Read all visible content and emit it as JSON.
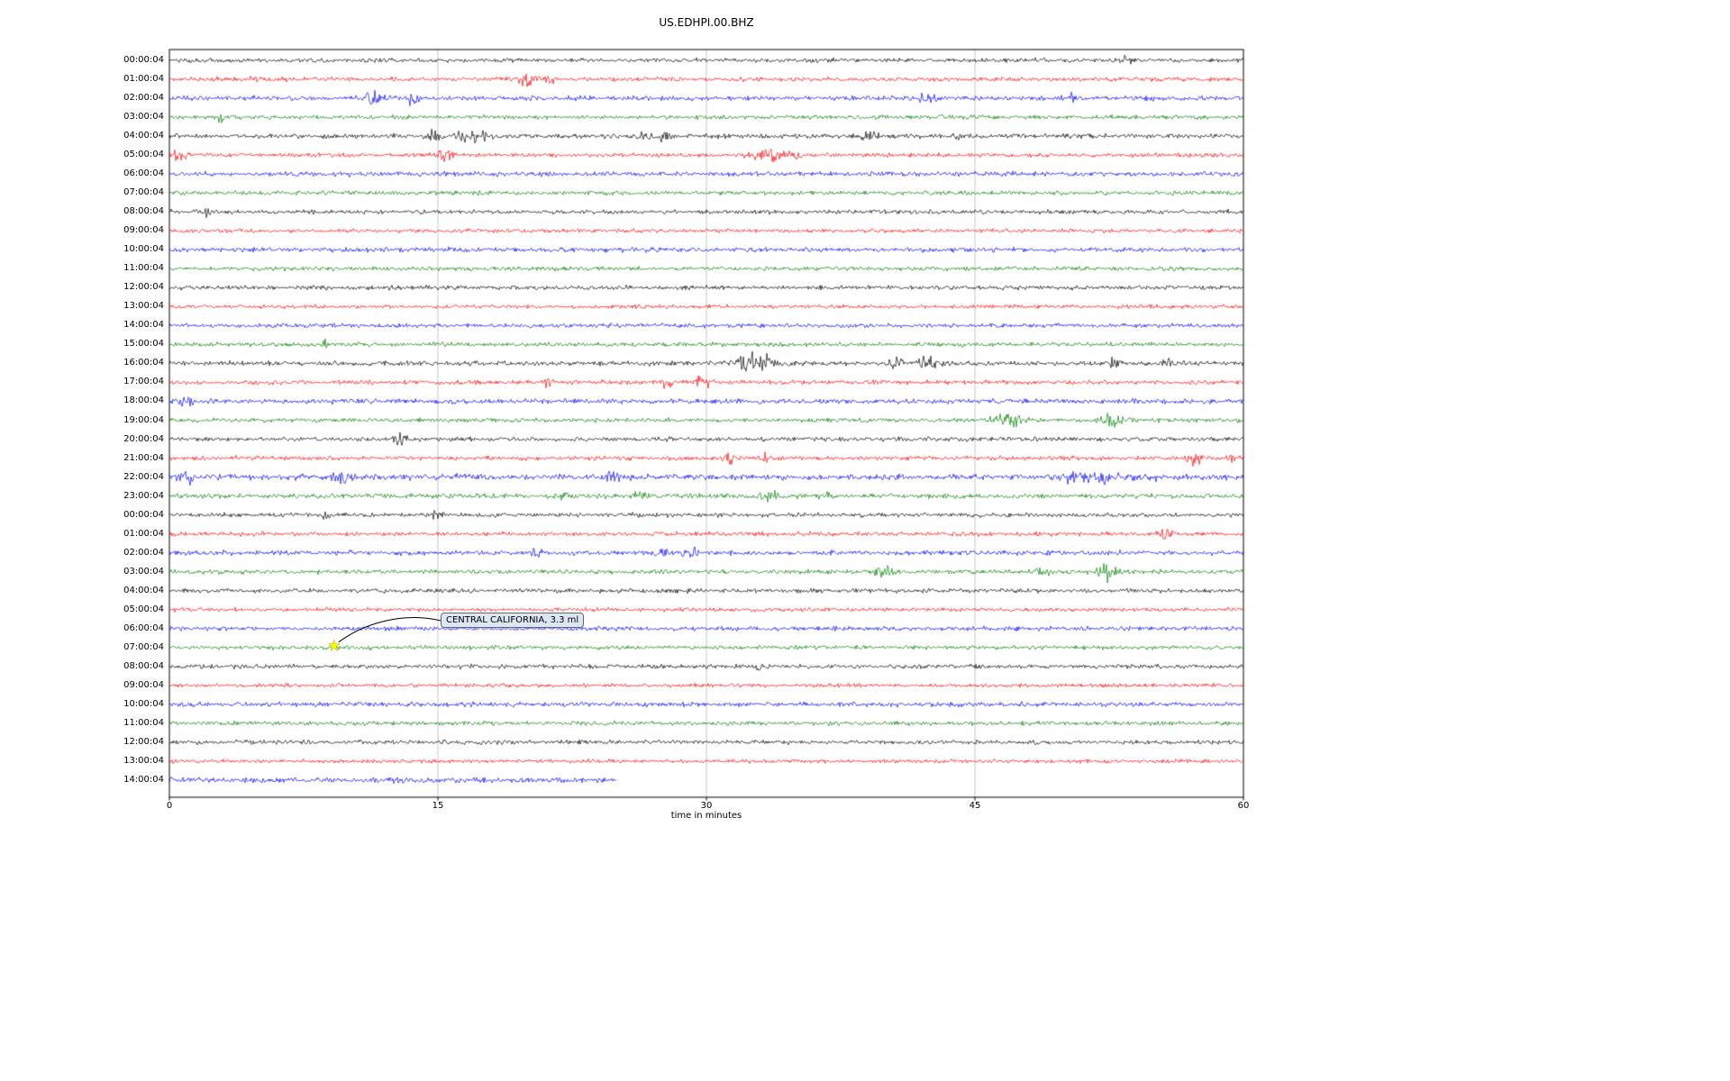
{
  "title": "US.EDHPI.00.BHZ",
  "chart_data": {
    "type": "line",
    "subtype": "helicorder-dayplot",
    "title": "US.EDHPI.00.BHZ",
    "xlabel": "time in minutes",
    "xlim": [
      0,
      60
    ],
    "x_ticks": [
      0,
      15,
      30,
      45,
      60
    ],
    "x_grid": [
      15,
      30,
      45
    ],
    "grid_on": true,
    "grid_color": "#b5b5b5",
    "trace_color_cycle": [
      "#000000",
      "#ff0000",
      "#0000ff",
      "#008000"
    ],
    "rows": [
      {
        "label": "00:00:04",
        "color": "#000000",
        "amp": 1.0,
        "events": [
          [
            53.5,
            1.8,
            0.25
          ]
        ]
      },
      {
        "label": "01:00:04",
        "color": "#ff0000",
        "amp": 1.0,
        "events": [
          [
            4.6,
            1.6,
            0.4
          ],
          [
            20.0,
            4.0,
            0.45
          ],
          [
            21.2,
            1.8,
            0.3
          ]
        ]
      },
      {
        "label": "02:00:04",
        "color": "#0000ff",
        "amp": 1.1,
        "events": [
          [
            11.3,
            2.8,
            0.5
          ],
          [
            13.6,
            2.2,
            0.4
          ],
          [
            42.5,
            2.2,
            0.7
          ],
          [
            50.5,
            1.5,
            0.3
          ]
        ]
      },
      {
        "label": "03:00:04",
        "color": "#008000",
        "amp": 1.0,
        "events": [
          [
            2.9,
            4.5,
            0.12
          ],
          [
            43.2,
            1.8,
            0.35
          ]
        ]
      },
      {
        "label": "04:00:04",
        "color": "#000000",
        "amp": 1.1,
        "events": [
          [
            14.8,
            2.6,
            0.3
          ],
          [
            16.6,
            3.2,
            0.8
          ],
          [
            17.8,
            2.6,
            0.4
          ],
          [
            26.6,
            3.2,
            0.4
          ],
          [
            27.7,
            2.4,
            0.3
          ],
          [
            39.2,
            1.8,
            0.5
          ],
          [
            44.0,
            1.4,
            0.3
          ]
        ]
      },
      {
        "label": "05:00:04",
        "color": "#ff0000",
        "amp": 1.0,
        "events": [
          [
            0.6,
            2.6,
            0.4
          ],
          [
            15.4,
            2.6,
            0.4
          ],
          [
            33.3,
            3.6,
            0.8
          ],
          [
            34.9,
            2.2,
            0.3
          ]
        ]
      },
      {
        "label": "06:00:04",
        "color": "#0000ff",
        "amp": 1.1,
        "events": []
      },
      {
        "label": "07:00:04",
        "color": "#008000",
        "amp": 1.0,
        "events": []
      },
      {
        "label": "08:00:04",
        "color": "#000000",
        "amp": 1.0,
        "events": [
          [
            2.1,
            1.2,
            0.3
          ]
        ]
      },
      {
        "label": "09:00:04",
        "color": "#ff0000",
        "amp": 0.9,
        "events": []
      },
      {
        "label": "10:00:04",
        "color": "#0000ff",
        "amp": 1.1,
        "events": []
      },
      {
        "label": "11:00:04",
        "color": "#008000",
        "amp": 1.0,
        "events": []
      },
      {
        "label": "12:00:04",
        "color": "#000000",
        "amp": 1.0,
        "events": []
      },
      {
        "label": "13:00:04",
        "color": "#ff0000",
        "amp": 0.9,
        "events": []
      },
      {
        "label": "14:00:04",
        "color": "#0000ff",
        "amp": 1.0,
        "events": []
      },
      {
        "label": "15:00:04",
        "color": "#008000",
        "amp": 1.0,
        "events": [
          [
            8.7,
            2.4,
            0.15
          ]
        ]
      },
      {
        "label": "16:00:04",
        "color": "#000000",
        "amp": 1.1,
        "events": [
          [
            32.3,
            4.5,
            0.6
          ],
          [
            33.4,
            3.5,
            0.4
          ],
          [
            40.6,
            3.2,
            0.4
          ],
          [
            42.3,
            3.2,
            0.6
          ],
          [
            52.7,
            2.2,
            0.3
          ],
          [
            55.6,
            1.8,
            0.3
          ]
        ]
      },
      {
        "label": "17:00:04",
        "color": "#ff0000",
        "amp": 1.0,
        "events": [
          [
            21.1,
            2.2,
            0.3
          ],
          [
            27.7,
            2.6,
            0.3
          ],
          [
            29.8,
            3.0,
            0.5
          ]
        ]
      },
      {
        "label": "18:00:04",
        "color": "#0000ff",
        "amp": 1.2,
        "events": [
          [
            1.0,
            1.4,
            0.5
          ]
        ]
      },
      {
        "label": "19:00:04",
        "color": "#008000",
        "amp": 1.0,
        "events": [
          [
            46.8,
            2.6,
            0.8
          ],
          [
            52.7,
            3.0,
            0.6
          ]
        ]
      },
      {
        "label": "20:00:04",
        "color": "#000000",
        "amp": 1.0,
        "events": [
          [
            12.9,
            3.2,
            0.35
          ]
        ]
      },
      {
        "label": "21:00:04",
        "color": "#ff0000",
        "amp": 1.0,
        "events": [
          [
            31.3,
            2.2,
            0.3
          ],
          [
            33.4,
            2.2,
            0.3
          ],
          [
            57.3,
            2.6,
            0.4
          ],
          [
            59.3,
            1.8,
            0.3
          ]
        ]
      },
      {
        "label": "22:00:04",
        "color": "#0000ff",
        "amp": 1.4,
        "events": [
          [
            1.0,
            2.0,
            0.4
          ],
          [
            9.7,
            2.0,
            0.5
          ],
          [
            24.8,
            2.0,
            0.4
          ],
          [
            50.6,
            2.0,
            0.8
          ],
          [
            52.4,
            2.0,
            0.6
          ],
          [
            54.6,
            1.7,
            0.4
          ]
        ]
      },
      {
        "label": "23:00:04",
        "color": "#008000",
        "amp": 1.1,
        "events": [
          [
            21.9,
            1.8,
            0.4
          ],
          [
            26.1,
            1.8,
            0.5
          ],
          [
            33.6,
            2.2,
            0.5
          ],
          [
            36.6,
            1.6,
            0.4
          ]
        ]
      },
      {
        "label": "00:00:04",
        "color": "#000000",
        "amp": 1.0,
        "events": [
          [
            8.7,
            1.8,
            0.3
          ],
          [
            14.9,
            1.6,
            0.3
          ]
        ]
      },
      {
        "label": "01:00:04",
        "color": "#ff0000",
        "amp": 1.0,
        "events": [
          [
            55.6,
            2.2,
            0.4
          ]
        ]
      },
      {
        "label": "02:00:04",
        "color": "#0000ff",
        "amp": 1.1,
        "events": [
          [
            20.5,
            2.2,
            0.3
          ],
          [
            27.6,
            1.8,
            0.3
          ],
          [
            29.1,
            1.8,
            0.4
          ]
        ]
      },
      {
        "label": "03:00:04",
        "color": "#008000",
        "amp": 1.0,
        "events": [
          [
            40.1,
            2.2,
            0.6
          ],
          [
            48.8,
            2.2,
            0.4
          ],
          [
            52.4,
            3.2,
            0.6
          ]
        ]
      },
      {
        "label": "04:00:04",
        "color": "#000000",
        "amp": 1.0,
        "events": []
      },
      {
        "label": "05:00:04",
        "color": "#ff0000",
        "amp": 0.9,
        "events": []
      },
      {
        "label": "06:00:04",
        "color": "#0000ff",
        "amp": 1.0,
        "events": []
      },
      {
        "label": "07:00:04",
        "color": "#008000",
        "amp": 1.0,
        "events": []
      },
      {
        "label": "08:00:04",
        "color": "#000000",
        "amp": 1.0,
        "events": [
          [
            32.9,
            1.8,
            0.2
          ]
        ]
      },
      {
        "label": "09:00:04",
        "color": "#ff0000",
        "amp": 0.9,
        "events": []
      },
      {
        "label": "10:00:04",
        "color": "#0000ff",
        "amp": 1.1,
        "events": []
      },
      {
        "label": "11:00:04",
        "color": "#008000",
        "amp": 1.0,
        "events": []
      },
      {
        "label": "12:00:04",
        "color": "#000000",
        "amp": 1.0,
        "events": []
      },
      {
        "label": "13:00:04",
        "color": "#ff0000",
        "amp": 0.9,
        "events": []
      },
      {
        "label": "14:00:04",
        "color": "#0000ff",
        "amp": 1.3,
        "end": 25,
        "events": []
      }
    ],
    "annotation": {
      "text": "CENTRAL CALIFORNIA, 3.3 ml",
      "row_index": 31,
      "row_label": "07:00:04",
      "x_minutes": 9.2,
      "marker": "star",
      "marker_color": "#ffff00",
      "marker_edge_color": "#b9b900",
      "box_fill": "#dce7f3",
      "box_border": "#666666"
    }
  }
}
